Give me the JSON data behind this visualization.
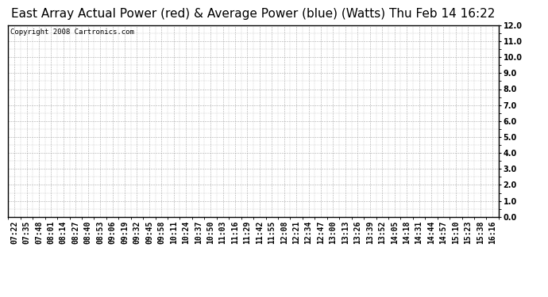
{
  "title": "East Array Actual Power (red) & Average Power (blue) (Watts) Thu Feb 14 16:22",
  "copyright_text": "Copyright 2008 Cartronics.com",
  "ylim": [
    0.0,
    12.0
  ],
  "yticks": [
    0.0,
    1.0,
    2.0,
    3.0,
    4.0,
    5.0,
    6.0,
    7.0,
    8.0,
    9.0,
    10.0,
    11.0,
    12.0
  ],
  "x_labels": [
    "07:22",
    "07:35",
    "07:48",
    "08:01",
    "08:14",
    "08:27",
    "08:40",
    "08:53",
    "09:06",
    "09:19",
    "09:32",
    "09:45",
    "09:58",
    "10:11",
    "10:24",
    "10:37",
    "10:50",
    "11:03",
    "11:16",
    "11:29",
    "11:42",
    "11:55",
    "12:08",
    "12:21",
    "12:34",
    "12:47",
    "13:00",
    "13:13",
    "13:26",
    "13:39",
    "13:52",
    "14:05",
    "14:18",
    "14:31",
    "14:44",
    "14:57",
    "15:10",
    "15:23",
    "15:38",
    "16:16"
  ],
  "background_color": "#ffffff",
  "plot_bg_color": "#ffffff",
  "grid_color": "#aaaaaa",
  "title_fontsize": 11,
  "copyright_fontsize": 6.5,
  "tick_fontsize": 7,
  "border_color": "#000000"
}
